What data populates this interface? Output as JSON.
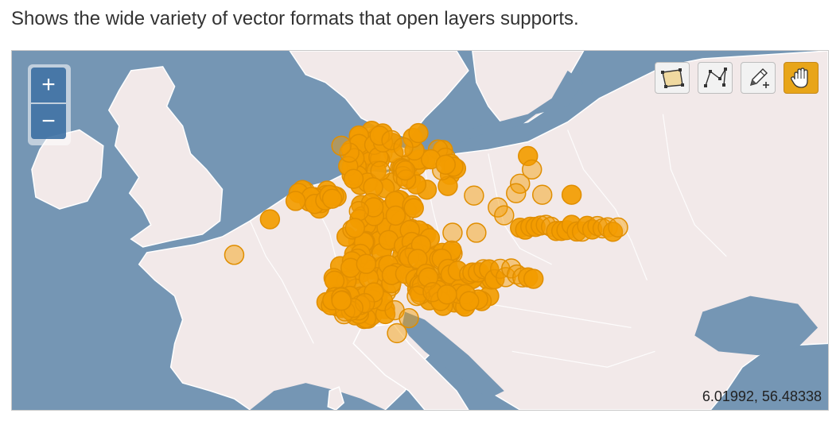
{
  "description": "Shows the wide variety of vector formats that open layers supports.",
  "controls": {
    "zoom_in_label": "+",
    "zoom_out_label": "−"
  },
  "toolbar": {
    "tools": [
      {
        "name": "draw-polygon",
        "icon": "polygon-icon",
        "active": false
      },
      {
        "name": "draw-line",
        "icon": "polyline-icon",
        "active": false
      },
      {
        "name": "modify-feature",
        "icon": "pencil-icon",
        "active": false
      },
      {
        "name": "navigate",
        "icon": "pan-hand-icon",
        "active": true
      }
    ]
  },
  "mouse_position": "6.01992, 56.48338",
  "colors": {
    "sea": "#7596b4",
    "land": "#f2e9e9",
    "border": "#ffffff",
    "feature_fill": "#f39c00",
    "feature_stroke": "#e08e00",
    "active_tool": "#e8a519"
  }
}
